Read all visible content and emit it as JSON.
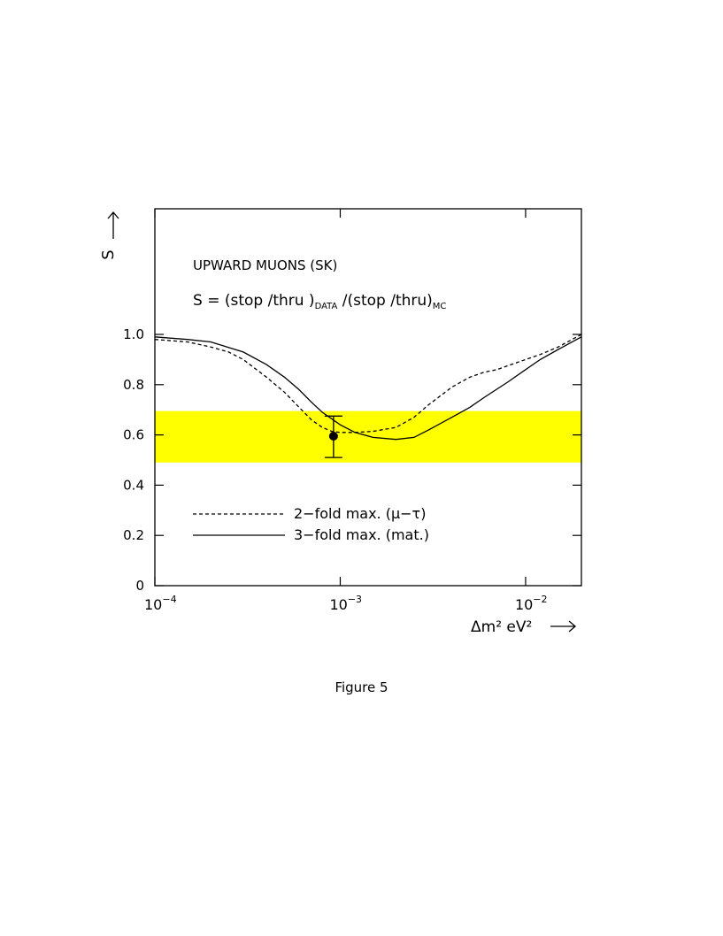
{
  "chart_data": {
    "type": "line",
    "title": "UPWARD MUONS (SK)",
    "subtitle": {
      "main": "S = (stop /thru )",
      "data_sub": "DATA",
      "mid": " /(stop /thru)",
      "mc_sub": "MC"
    },
    "ylabel": "S",
    "xlabel": "Δm² eV²",
    "x_scale": "log",
    "xlim": [
      0.0001,
      0.02
    ],
    "ylim": [
      0,
      1.0
    ],
    "y_ticks": [
      "0",
      "0.2",
      "0.4",
      "0.6",
      "0.8",
      "1.0"
    ],
    "x_ticks": [
      {
        "base": "10",
        "exp": "−4",
        "value": 0.0001
      },
      {
        "base": "10",
        "exp": "−3",
        "value": 0.001
      },
      {
        "base": "10",
        "exp": "−2",
        "value": 0.01
      }
    ],
    "band": {
      "y_low": 0.49,
      "y_high": 0.695,
      "color": "#ffff00"
    },
    "data_point": {
      "x": 0.00092,
      "y": 0.595,
      "y_err_low": 0.51,
      "y_err_high": 0.675
    },
    "series": [
      {
        "name": "2−fold max.  (μ−τ)",
        "style": "dashed",
        "x": [
          0.0001,
          0.00015,
          0.0002,
          0.00025,
          0.0003,
          0.0004,
          0.0005,
          0.0006,
          0.0007,
          0.0008,
          0.0009,
          0.001,
          0.0012,
          0.0015,
          0.002,
          0.0025,
          0.003,
          0.004,
          0.005,
          0.006,
          0.007,
          0.008,
          0.01,
          0.012,
          0.015,
          0.02
        ],
        "y": [
          0.98,
          0.97,
          0.95,
          0.93,
          0.9,
          0.83,
          0.77,
          0.71,
          0.66,
          0.63,
          0.614,
          0.61,
          0.61,
          0.614,
          0.63,
          0.67,
          0.72,
          0.79,
          0.83,
          0.85,
          0.86,
          0.875,
          0.9,
          0.92,
          0.95,
          1.0
        ]
      },
      {
        "name": "3−fold max.  (mat.)",
        "style": "solid",
        "x": [
          0.0001,
          0.00015,
          0.0002,
          0.0003,
          0.0004,
          0.0005,
          0.0006,
          0.0007,
          0.0008,
          0.001,
          0.0012,
          0.0015,
          0.002,
          0.0025,
          0.003,
          0.004,
          0.005,
          0.006,
          0.008,
          0.01,
          0.012,
          0.015,
          0.02
        ],
        "y": [
          0.99,
          0.98,
          0.97,
          0.93,
          0.88,
          0.83,
          0.78,
          0.73,
          0.69,
          0.64,
          0.61,
          0.59,
          0.582,
          0.59,
          0.62,
          0.67,
          0.71,
          0.75,
          0.81,
          0.86,
          0.9,
          0.94,
          0.99
        ]
      }
    ],
    "legend_position": "bottom-left"
  },
  "caption": "Figure 5"
}
